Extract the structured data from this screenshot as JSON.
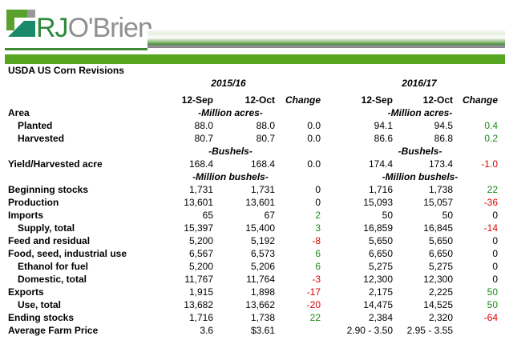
{
  "logo": {
    "text": "RJO'Brien"
  },
  "title": "USDA US Corn Revisions",
  "years": [
    "2015/16",
    "2016/17"
  ],
  "col_headers": [
    "12-Sep",
    "12-Oct",
    "Change",
    "12-Sep",
    "12-Oct",
    "Change"
  ],
  "colors": {
    "brand_green": "#57a520",
    "positive": "#1a8a1a",
    "negative": "#e00000"
  },
  "rows": [
    {
      "label": "Area",
      "indent": false,
      "unit": "-Million acres-"
    },
    {
      "label": "Planted",
      "indent": true,
      "values": [
        "88.0",
        "88.0",
        "0.0",
        "94.1",
        "94.5",
        "0.4"
      ]
    },
    {
      "label": "Harvested",
      "indent": true,
      "values": [
        "80.7",
        "80.7",
        "0.0",
        "86.6",
        "86.8",
        "0.2"
      ]
    },
    {
      "label": "",
      "unit": "-Bushels-"
    },
    {
      "label": "Yield/Harvested acre",
      "values": [
        "168.4",
        "168.4",
        "0.0",
        "174.4",
        "173.4",
        "-1.0"
      ]
    },
    {
      "label": "",
      "unit": "-Million bushels-"
    },
    {
      "label": "Beginning stocks",
      "values": [
        "1,731",
        "1,731",
        "0",
        "1,716",
        "1,738",
        "22"
      ]
    },
    {
      "label": "Production",
      "values": [
        "13,601",
        "13,601",
        "0",
        "15,093",
        "15,057",
        "-36"
      ]
    },
    {
      "label": "Imports",
      "values": [
        "65",
        "67",
        "2",
        "50",
        "50",
        "0"
      ]
    },
    {
      "label": "Supply, total",
      "indent": true,
      "values": [
        "15,397",
        "15,400",
        "3",
        "16,859",
        "16,845",
        "-14"
      ]
    },
    {
      "label": "Feed and residual",
      "values": [
        "5,200",
        "5,192",
        "-8",
        "5,650",
        "5,650",
        "0"
      ]
    },
    {
      "label": "Food, seed, industrial use",
      "values": [
        "6,567",
        "6,573",
        "6",
        "6,650",
        "6,650",
        "0"
      ]
    },
    {
      "label": "Ethanol for fuel",
      "indent": true,
      "values": [
        "5,200",
        "5,206",
        "6",
        "5,275",
        "5,275",
        "0"
      ]
    },
    {
      "label": "Domestic, total",
      "indent": true,
      "values": [
        "11,767",
        "11,764",
        "-3",
        "12,300",
        "12,300",
        "0"
      ]
    },
    {
      "label": "Exports",
      "values": [
        "1,915",
        "1,898",
        "-17",
        "2,175",
        "2,225",
        "50"
      ]
    },
    {
      "label": "Use, total",
      "indent": true,
      "values": [
        "13,682",
        "13,662",
        "-20",
        "14,475",
        "14,525",
        "50"
      ]
    },
    {
      "label": "Ending stocks",
      "values": [
        "1,716",
        "1,738",
        "22",
        "2,384",
        "2,320",
        "-64"
      ]
    },
    {
      "label": "Average Farm Price",
      "values": [
        "3.6",
        "$3.61",
        "",
        "2.90 - 3.50",
        "2.95 - 3.55",
        ""
      ]
    }
  ]
}
